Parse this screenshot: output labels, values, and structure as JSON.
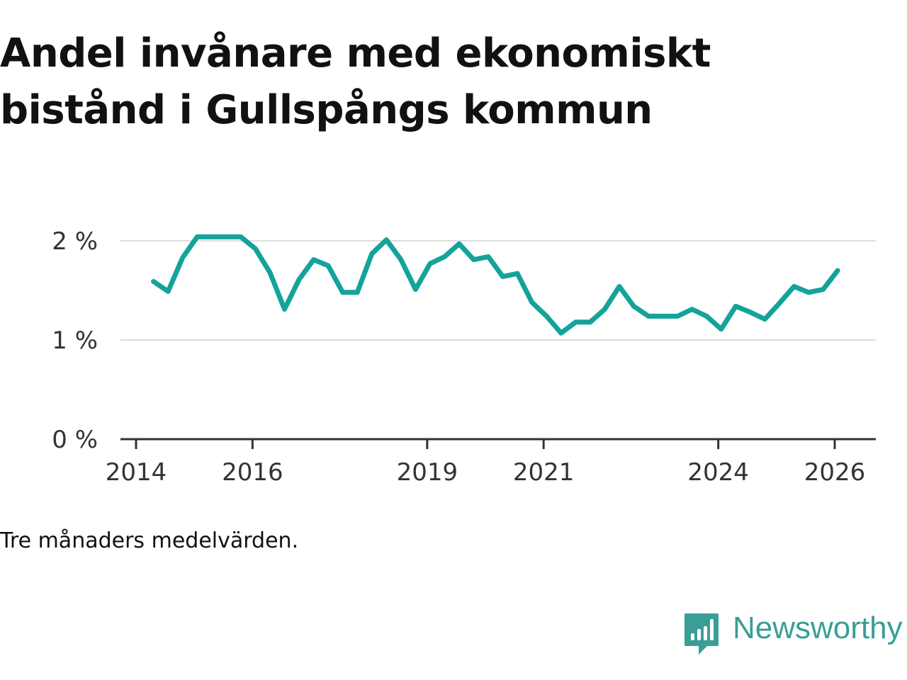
{
  "title": "Andel invånare med ekonomiskt bistånd i Gullspångs kommun",
  "note": "Tre månaders medelvärden.",
  "brand": {
    "name": "Newsworthy",
    "icon": "newsworthy-logo-icon",
    "color": "#3a9e97"
  },
  "chart_data": {
    "type": "line",
    "title": "Andel invånare med ekonomiskt bistånd i Gullspångs kommun",
    "xlabel": "",
    "ylabel": "",
    "ylim": [
      0,
      2.2
    ],
    "xlim": [
      2014,
      2026.7
    ],
    "grid": true,
    "y_ticks": [
      {
        "value": 0,
        "label": "0 %"
      },
      {
        "value": 1,
        "label": "1 %"
      },
      {
        "value": 2,
        "label": "2 %"
      }
    ],
    "x_ticks": [
      {
        "value": 2014,
        "label": "2014"
      },
      {
        "value": 2016,
        "label": "2016"
      },
      {
        "value": 2019,
        "label": "2019"
      },
      {
        "value": 2021,
        "label": "2021"
      },
      {
        "value": 2024,
        "label": "2024"
      },
      {
        "value": 2026,
        "label": "2026"
      }
    ],
    "series": [
      {
        "name": "Andel invånare med ekonomiskt bistånd",
        "color": "#13a39b",
        "x": [
          2014.3,
          2014.55,
          2014.8,
          2015.05,
          2015.3,
          2015.55,
          2015.8,
          2016.05,
          2016.3,
          2016.55,
          2016.8,
          2017.05,
          2017.3,
          2017.55,
          2017.8,
          2018.05,
          2018.3,
          2018.55,
          2018.8,
          2019.05,
          2019.3,
          2019.55,
          2019.8,
          2020.05,
          2020.3,
          2020.55,
          2020.8,
          2021.05,
          2021.3,
          2021.55,
          2021.8,
          2022.05,
          2022.3,
          2022.55,
          2022.8,
          2023.05,
          2023.3,
          2023.55,
          2023.8,
          2024.05,
          2024.3,
          2024.55,
          2024.8,
          2025.05,
          2025.3,
          2025.55,
          2025.8,
          2026.05
        ],
        "values": [
          1.59,
          1.49,
          1.83,
          2.04,
          2.04,
          2.04,
          2.04,
          1.92,
          1.68,
          1.31,
          1.61,
          1.81,
          1.75,
          1.48,
          1.48,
          1.87,
          2.01,
          1.81,
          1.51,
          1.77,
          1.84,
          1.97,
          1.81,
          1.84,
          1.64,
          1.67,
          1.38,
          1.24,
          1.07,
          1.18,
          1.18,
          1.31,
          1.54,
          1.34,
          1.24,
          1.24,
          1.24,
          1.31,
          1.24,
          1.11,
          1.34,
          1.28,
          1.21,
          1.37,
          1.54,
          1.48,
          1.51,
          1.7
        ]
      }
    ]
  }
}
